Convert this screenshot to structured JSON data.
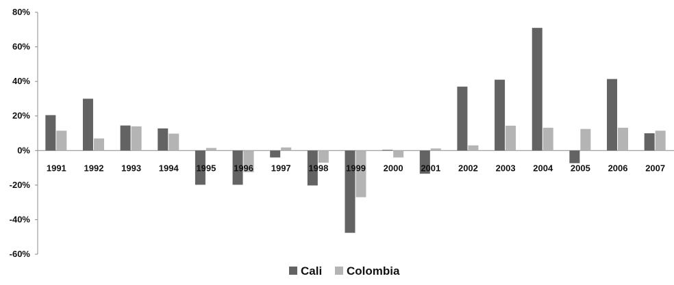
{
  "chart_data": {
    "type": "bar",
    "categories": [
      "1991",
      "1992",
      "1993",
      "1994",
      "1995",
      "1996",
      "1997",
      "1998",
      "1999",
      "2000",
      "2001",
      "2002",
      "2003",
      "2004",
      "2005",
      "2006",
      "2007"
    ],
    "series": [
      {
        "name": "Cali",
        "color": "#636363",
        "values": [
          20.5,
          30,
          14.5,
          12.8,
          -19.8,
          -19.8,
          -4,
          -20.2,
          -47.6,
          0.4,
          -13.4,
          37,
          41,
          71,
          -7.3,
          41.4,
          10
        ]
      },
      {
        "name": "Colombia",
        "color": "#b4b4b4",
        "values": [
          11.5,
          7,
          14,
          9.8,
          1.5,
          -12.5,
          1.8,
          -7,
          -27,
          -4,
          1.2,
          3,
          14.4,
          13.2,
          12.5,
          13.2,
          11.5
        ]
      }
    ],
    "ylim": [
      -60,
      80
    ],
    "yticks": [
      "80%",
      "60%",
      "40%",
      "20%",
      "0%",
      "-20%",
      "-40%",
      "-60%"
    ],
    "ytick_values": [
      80,
      60,
      40,
      20,
      0,
      -20,
      -40,
      -60
    ],
    "legend_position": "bottom",
    "grid": false
  }
}
